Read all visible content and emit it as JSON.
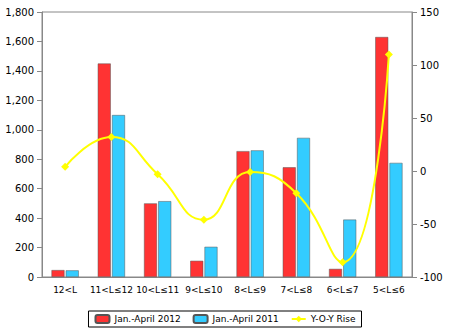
{
  "chart_data": {
    "type": "bar",
    "categories": [
      "12<L",
      "11<L≤12",
      "10<L≤11",
      "9<L≤10",
      "8<L≤9",
      "7<L≤8",
      "6<L≤7",
      "5<L≤6"
    ],
    "series": [
      {
        "name": "Jan.-April 2012",
        "type": "bar",
        "color": "#ff3333",
        "values": [
          47,
          1450,
          500,
          110,
          855,
          745,
          55,
          1630
        ]
      },
      {
        "name": "Jan.-April 2011",
        "type": "bar",
        "color": "#33ccff",
        "values": [
          45,
          1100,
          515,
          205,
          860,
          945,
          390,
          775
        ]
      },
      {
        "name": "Y-O-Y Rise",
        "type": "line",
        "color": "#ffff00",
        "marker": "diamond",
        "axis": "y2",
        "values": [
          4,
          32,
          -3,
          -46,
          -1,
          -21,
          -86,
          110
        ]
      }
    ],
    "ylim": [
      0,
      1800
    ],
    "yticks": [
      0,
      200,
      400,
      600,
      800,
      1000,
      1200,
      1400,
      1600,
      1800
    ],
    "y2lim": [
      -100,
      150
    ],
    "y2ticks": [
      -100,
      -50,
      0,
      50,
      100,
      150
    ],
    "grid": false,
    "legend": "bottom"
  }
}
